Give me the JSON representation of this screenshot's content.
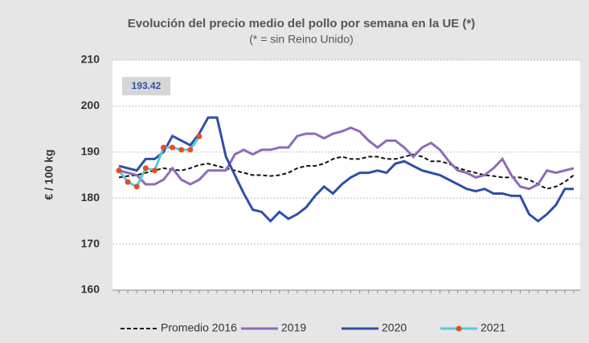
{
  "chart_data": {
    "type": "line",
    "title": "Evolución del precio medio del pollo por semana en la UE (*)",
    "subtitle": "(* = sin Reino Unido)",
    "y_label": "€ / 100 kg",
    "annotation": "193.42",
    "ylim": [
      160,
      210
    ],
    "yticks": [
      160,
      170,
      180,
      190,
      200,
      210
    ],
    "grid": true,
    "legend": "bottom",
    "series": [
      {
        "name": "Promedio 2016",
        "color": "#111111",
        "dashed": true,
        "values": [
          184.5,
          184.8,
          185,
          185.5,
          186,
          186.5,
          186.2,
          186,
          186.5,
          187.2,
          187.5,
          187,
          186.5,
          186,
          185.5,
          185,
          185,
          184.8,
          185,
          185.5,
          186.5,
          187,
          187,
          187.5,
          188.5,
          189,
          188.5,
          188.5,
          189,
          189,
          188.5,
          188.5,
          189,
          189.5,
          189,
          188,
          188,
          187.5,
          186.5,
          186,
          185.5,
          185,
          184.8,
          184.5,
          184.5,
          184.5,
          184,
          183,
          182,
          182.5,
          183.5,
          185
        ]
      },
      {
        "name": "2019",
        "color": "#8e6bb8",
        "values": [
          186,
          185.5,
          185,
          183,
          183,
          184,
          186.5,
          184,
          183,
          184,
          186,
          186,
          186,
          189.5,
          190.5,
          189.5,
          190.5,
          190.5,
          191,
          191,
          193.5,
          194,
          194,
          193,
          194,
          194.5,
          195.3,
          194.5,
          192.5,
          191,
          192.5,
          192.5,
          191,
          189,
          191,
          192,
          190.5,
          188,
          186,
          185.5,
          184.5,
          185,
          186.5,
          188.5,
          185,
          182.5,
          182,
          183,
          186,
          185.5,
          186,
          186.5
        ]
      },
      {
        "name": "2020",
        "color": "#2e4fa8",
        "values": [
          187,
          186.5,
          186,
          188.5,
          188.5,
          190,
          193.5,
          192.5,
          191.5,
          194,
          197.5,
          197.5,
          189,
          185,
          181,
          177.5,
          177,
          175,
          177,
          175.5,
          176.5,
          178,
          180.5,
          182.5,
          181,
          183,
          184.5,
          185.5,
          185.5,
          186,
          185.5,
          187.5,
          188,
          187,
          186,
          185.5,
          185,
          184,
          183,
          182,
          181.5,
          182,
          181,
          181,
          180.5,
          180.5,
          176.5,
          175,
          176.5,
          178.5,
          182,
          182
        ]
      },
      {
        "name": "2021",
        "color": "#55c8e0",
        "marker_color": "#e05020",
        "values": [
          186,
          183.5,
          182.5,
          186.5,
          186,
          191,
          191,
          190.5,
          190.5,
          193.42,
          null,
          null,
          null,
          null,
          null,
          null,
          null,
          null,
          null,
          null,
          null,
          null,
          null,
          null,
          null,
          null,
          null,
          null,
          null,
          null,
          null,
          null,
          null,
          null,
          null,
          null,
          null,
          null,
          null,
          null,
          null,
          null,
          null,
          null,
          null,
          null,
          null,
          null,
          null,
          null,
          null,
          null
        ]
      }
    ]
  }
}
